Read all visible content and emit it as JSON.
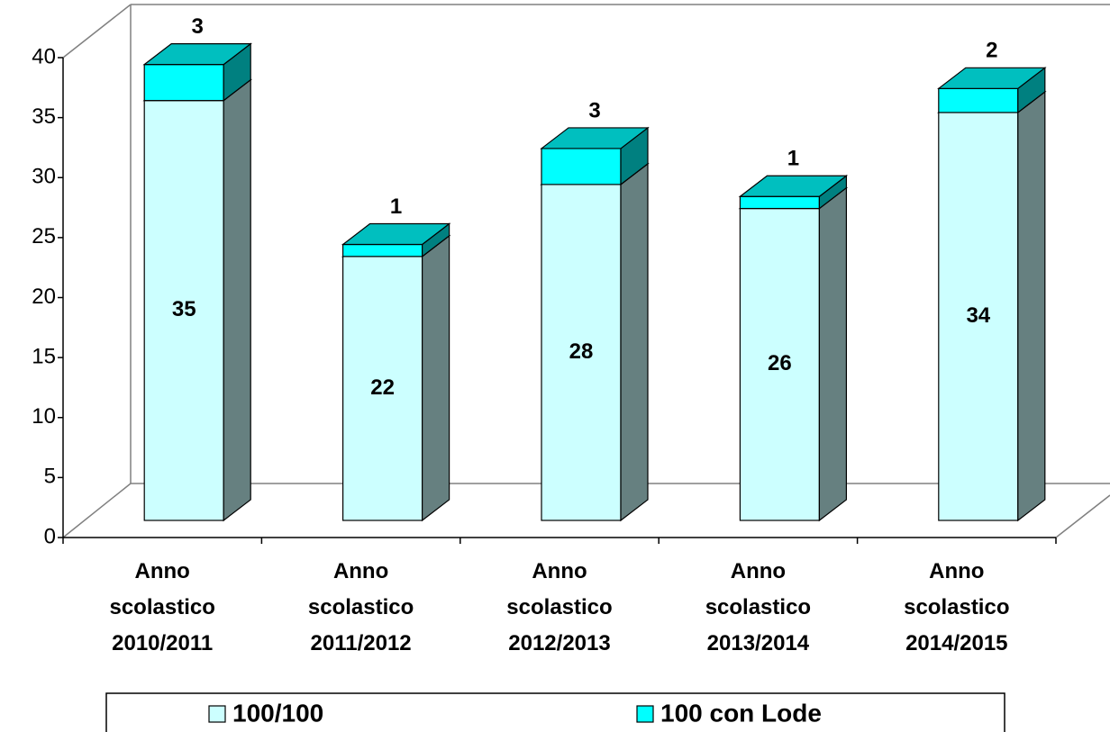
{
  "chart_data": {
    "type": "stacked_bar_3d",
    "categories": [
      "Anno scolastico 2010/2011",
      "Anno scolastico 2011/2012",
      "Anno scolastico 2012/2013",
      "Anno scolastico 2013/2014",
      "Anno scolastico 2014/2015"
    ],
    "series": [
      {
        "name": "100/100",
        "color": "#ccffff",
        "values": [
          35,
          22,
          28,
          26,
          34
        ]
      },
      {
        "name": "100 con Lode",
        "color": "#00ffff",
        "values": [
          3,
          1,
          3,
          1,
          2
        ]
      }
    ],
    "ylim": [
      0,
      40
    ],
    "yticks": [
      0,
      5,
      10,
      15,
      20,
      25,
      30,
      35,
      40
    ],
    "grid": false,
    "legend": "bottom"
  }
}
